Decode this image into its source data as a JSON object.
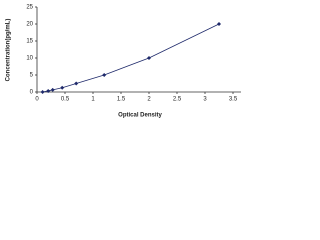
{
  "chart_data": {
    "type": "scatter",
    "x_label": "Optical Density",
    "y_label": "Concentration(pg/mL)",
    "x": [
      0.1,
      0.2,
      0.28,
      0.45,
      0.7,
      1.2,
      2.0,
      3.25
    ],
    "values": [
      0,
      0.31,
      0.63,
      1.25,
      2.5,
      5,
      10,
      20
    ],
    "color": "#1f2a6b",
    "line": true,
    "xlim": [
      0,
      3.5
    ],
    "xticks": [
      0,
      {
        "value": 0.5,
        "label": "0.5"
      },
      1,
      {
        "value": 1.5,
        "label": "1.5"
      },
      2,
      {
        "value": 2.5,
        "label": "2.5"
      },
      3,
      {
        "value": 3.5,
        "label": "3.5"
      }
    ],
    "ylim": [
      0,
      25
    ],
    "yticks": [
      0,
      5,
      10,
      15,
      20,
      25
    ]
  }
}
